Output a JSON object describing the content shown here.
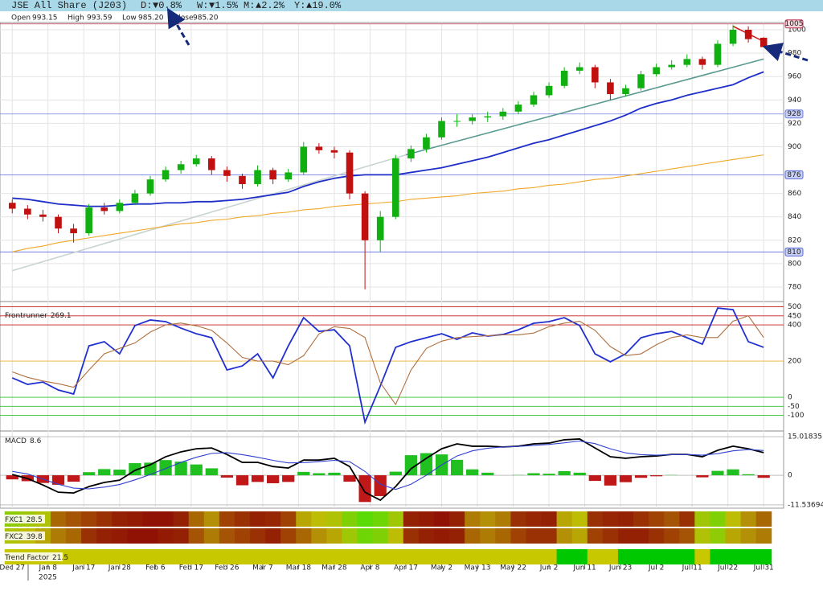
{
  "header": {
    "title": "JSE All Share (J203)",
    "changes": [
      {
        "name": "D:",
        "text": "▼0.8%",
        "color": "#d02020"
      },
      {
        "name": "W:",
        "text": "▼1.5%",
        "color": "#d02020"
      },
      {
        "name": "M:",
        "text": "▲2.2%",
        "color": "#109010"
      },
      {
        "name": "Y:",
        "text": "▲19.0%",
        "color": "#109010"
      }
    ],
    "ohlc": [
      {
        "name": "Open",
        "value": 993.15
      },
      {
        "name": "High",
        "value": 993.59
      },
      {
        "name": "Low",
        "value": {
          "value": 985.2,
          "label": "985.20"
        }
      },
      {
        "name": "Close",
        "value": {
          "value": 985.2,
          "label": "985.20"
        }
      }
    ]
  },
  "x": {
    "values": [
      0,
      3,
      6,
      9,
      12,
      15,
      18,
      21,
      24,
      27,
      30,
      33,
      36,
      39,
      42,
      45,
      48,
      51,
      54,
      57,
      60,
      63,
      66,
      69,
      72,
      75,
      78,
      81,
      84,
      87,
      90,
      93,
      96,
      99,
      102,
      105,
      108,
      111,
      114,
      117,
      120,
      123,
      126,
      129,
      132,
      135,
      138,
      141,
      144,
      147
    ],
    "xlim": [
      -2.4,
      150.9
    ],
    "xticks": [
      {
        "value": 0,
        "label": "Dec 27"
      },
      {
        "value": 7,
        "label": "Jan 8"
      },
      {
        "value": 14,
        "label": "Jan 17"
      },
      {
        "value": 21,
        "label": "Jan 28"
      },
      {
        "value": 28,
        "label": "Feb 6"
      },
      {
        "value": 35,
        "label": "Feb 17"
      },
      {
        "value": 42,
        "label": "Feb 26"
      },
      {
        "value": 49,
        "label": "Mar 7"
      },
      {
        "value": 56,
        "label": "Mar 18"
      },
      {
        "value": 63,
        "label": "Mar 28"
      },
      {
        "value": 70,
        "label": "Apr 8"
      },
      {
        "value": 77,
        "label": "Apr 17"
      },
      {
        "value": 84,
        "label": "May 2"
      },
      {
        "value": 91,
        "label": "May 13"
      },
      {
        "value": 98,
        "label": "May 22"
      },
      {
        "value": 105,
        "label": "Jun 2"
      },
      {
        "value": 112,
        "label": "Jun 11"
      },
      {
        "value": 119,
        "label": "Jun 23"
      },
      {
        "value": 126,
        "label": "Jul 2"
      },
      {
        "value": 133,
        "label": "Jul 11"
      },
      {
        "value": 140,
        "label": "Jul 22"
      },
      {
        "value": 147,
        "label": "Jul 31"
      }
    ],
    "year": "2025"
  },
  "chart_data": [
    {
      "type": "candlestick",
      "up_color": "#10b010",
      "down_color": "#c01010",
      "grid": true,
      "ylim": [
        767.6,
        1006.2
      ],
      "yticks": [
        780,
        800,
        820,
        840,
        860,
        900,
        920,
        940,
        960,
        980,
        1000
      ],
      "ohlc": [
        [
          852,
          855,
          843,
          847
        ],
        [
          847,
          850,
          838,
          842
        ],
        [
          842,
          846,
          836,
          840
        ],
        [
          840,
          842,
          826,
          830
        ],
        [
          830,
          834,
          818,
          826
        ],
        [
          826,
          851,
          824,
          848
        ],
        [
          848,
          852,
          842,
          845
        ],
        [
          845,
          855,
          843,
          852
        ],
        [
          852,
          863,
          850,
          860
        ],
        [
          860,
          875,
          858,
          872
        ],
        [
          872,
          883,
          870,
          880
        ],
        [
          880,
          888,
          877,
          885
        ],
        [
          885,
          893,
          883,
          890
        ],
        [
          890,
          892,
          876,
          880
        ],
        [
          880,
          883,
          870,
          875
        ],
        [
          875,
          877,
          864,
          868
        ],
        [
          868,
          884,
          866,
          880
        ],
        [
          880,
          882,
          868,
          872
        ],
        [
          872,
          881,
          870,
          878
        ],
        [
          878,
          904,
          876,
          900
        ],
        [
          900,
          903,
          894,
          897
        ],
        [
          897,
          900,
          890,
          895
        ],
        [
          895,
          897,
          855,
          860
        ],
        [
          860,
          862,
          778,
          820
        ],
        [
          820,
          845,
          810,
          840
        ],
        [
          840,
          893,
          838,
          890
        ],
        [
          890,
          901,
          887,
          898
        ],
        [
          898,
          911,
          895,
          908
        ],
        [
          908,
          925,
          906,
          922
        ],
        [
          922,
          928,
          917,
          922
        ],
        [
          922,
          928,
          919,
          925
        ],
        [
          925,
          930,
          921,
          926
        ],
        [
          926,
          933,
          923,
          930
        ],
        [
          930,
          939,
          928,
          936
        ],
        [
          936,
          947,
          934,
          944
        ],
        [
          944,
          955,
          942,
          952
        ],
        [
          952,
          968,
          950,
          965
        ],
        [
          965,
          972,
          962,
          968
        ],
        [
          968,
          970,
          950,
          955
        ],
        [
          955,
          958,
          940,
          945
        ],
        [
          945,
          953,
          943,
          950
        ],
        [
          950,
          965,
          948,
          962
        ],
        [
          962,
          971,
          960,
          968
        ],
        [
          968,
          974,
          966,
          970
        ],
        [
          970,
          979,
          968,
          975
        ],
        [
          975,
          977,
          966,
          970
        ],
        [
          970,
          991,
          968,
          988
        ],
        [
          988,
          1004,
          986,
          1000
        ],
        [
          1000,
          1003,
          989,
          992
        ],
        [
          993.15,
          993.59,
          985.2,
          985.2
        ]
      ],
      "series": [
        {
          "color": "#1e2ec8",
          "values": [
            856,
            855,
            853,
            851,
            850,
            849,
            849,
            850,
            851,
            851,
            852,
            852,
            853,
            853,
            854,
            855,
            857,
            859,
            861,
            866,
            870,
            873,
            875,
            876,
            876,
            876,
            878,
            880,
            882,
            885,
            888,
            891,
            895,
            899,
            903,
            906,
            910,
            914,
            918,
            922,
            927,
            933,
            937,
            940,
            944,
            947,
            950,
            953,
            959,
            964
          ]
        },
        {
          "color": "#f0a828",
          "values": [
            810,
            813,
            815,
            818,
            820,
            822,
            824,
            826,
            828,
            830,
            832,
            834,
            835,
            837,
            838,
            840,
            841,
            843,
            844,
            846,
            847,
            849,
            850,
            851,
            852,
            853,
            855,
            856,
            857,
            858,
            860,
            861,
            862,
            864,
            865,
            867,
            868,
            870,
            872,
            873,
            875,
            877,
            879,
            881,
            883,
            885,
            887,
            889,
            891,
            893
          ]
        }
      ],
      "levels": [
        {
          "value": 1005,
          "color": "#c03050"
        },
        {
          "value": 928,
          "color": "#7080e0"
        },
        {
          "value": 876,
          "color": "#5a6ae0"
        },
        {
          "value": 810,
          "color": "#5a6ae0"
        }
      ],
      "trendlines": [
        {
          "color": "#c8d4d0",
          "x": [
            0,
            77
          ],
          "y": [
            794,
            893
          ]
        },
        {
          "color": "#5a9a90",
          "x": [
            77,
            147
          ],
          "y": [
            893,
            975
          ]
        },
        {
          "color": "#d02020",
          "x": [
            141,
            147
          ],
          "y": [
            1003,
            990
          ]
        }
      ]
    },
    {
      "type": "line",
      "title": "Frontrunner",
      "value": 269.1,
      "ylim": [
        -182,
        529
      ],
      "yticks": [
        500,
        450,
        400,
        200,
        0,
        -50,
        -100
      ],
      "tick_colors": [
        "#c02020",
        "#c02020",
        "#c02020",
        "#f0b030",
        "#30c030",
        "#30c030",
        "#30c030"
      ],
      "series": [
        {
          "color": "#2030d0",
          "values": [
            107,
            71,
            84,
            40,
            18,
            284,
            307,
            240,
            396,
            427,
            418,
            382,
            351,
            329,
            151,
            173,
            240,
            107,
            284,
            440,
            364,
            373,
            284,
            -138,
            62,
            276,
            307,
            329,
            351,
            320,
            356,
            338,
            347,
            373,
            409,
            418,
            440,
            396,
            240,
            196,
            240,
            329,
            351,
            364,
            329,
            293,
            493,
            484,
            307,
            276
          ]
        },
        {
          "color": "#b07040",
          "values": [
            140,
            110,
            90,
            75,
            55,
            150,
            240,
            270,
            300,
            360,
            400,
            410,
            395,
            370,
            300,
            220,
            200,
            200,
            180,
            230,
            350,
            390,
            380,
            330,
            80,
            -40,
            150,
            270,
            310,
            330,
            335,
            340,
            345,
            345,
            355,
            390,
            410,
            420,
            370,
            280,
            230,
            240,
            290,
            330,
            345,
            330,
            330,
            420,
            450,
            330
          ]
        }
      ]
    },
    {
      "type": "macd",
      "title": "MACD",
      "value": 8.6,
      "ylim": [
        -12.8,
        16.9
      ],
      "yticks": [
        -11.53694,
        0,
        15.01835
      ],
      "series": [
        {
          "color": "#000000",
          "values": [
            0.3,
            -1.3,
            -3.8,
            -6.6,
            -6.9,
            -4.4,
            -2.8,
            -1.9,
            1.9,
            4.1,
            7.2,
            9.1,
            10.3,
            10.6,
            8.1,
            5.0,
            5.0,
            3.4,
            2.8,
            5.9,
            5.9,
            6.6,
            3.4,
            -6.6,
            -9.7,
            -4.4,
            2.5,
            6.6,
            10.3,
            12.2,
            11.3,
            11.3,
            11.0,
            11.3,
            12.2,
            12.5,
            13.8,
            14.1,
            10.6,
            7.2,
            6.6,
            7.2,
            7.5,
            8.1,
            8.1,
            7.2,
            9.7,
            11.3,
            10.3,
            8.8
          ]
        },
        {
          "color": "#3040d0",
          "values": [
            1.5,
            0.5,
            -1.5,
            -3.5,
            -5.0,
            -5.3,
            -4.6,
            -3.6,
            -1.8,
            0.3,
            2.6,
            5.0,
            7.0,
            8.5,
            8.8,
            8.0,
            7.0,
            5.8,
            4.8,
            4.9,
            5.3,
            5.8,
            5.3,
            1.5,
            -3.5,
            -5.5,
            -3.5,
            0,
            4.0,
            7.5,
            9.5,
            10.5,
            11.0,
            11.2,
            11.6,
            12.0,
            12.6,
            13.3,
            12.3,
            10.3,
            8.7,
            8.0,
            7.8,
            8.0,
            8.1,
            7.8,
            8.4,
            9.5,
            10.0,
            9.6
          ]
        }
      ],
      "histogram": {
        "up_color": "#20c020",
        "down_color": "#c01818",
        "values": [
          -1.6,
          -2.3,
          -3.0,
          -3.7,
          -2.5,
          1.2,
          2.4,
          2.2,
          4.7,
          4.9,
          5.9,
          5.3,
          4.2,
          2.7,
          -0.9,
          -3.9,
          -2.6,
          -3.1,
          -2.6,
          1.3,
          0.8,
          1.0,
          -2.5,
          -10.4,
          -8.1,
          1.4,
          7.8,
          8.6,
          8.1,
          6.0,
          2.3,
          1.0,
          0,
          0.1,
          0.8,
          0.6,
          1.6,
          1.0,
          -2.2,
          -4.0,
          -2.7,
          -1.0,
          -0.4,
          0.1,
          0,
          -0.8,
          1.7,
          2.3,
          0.4,
          -1.0
        ]
      }
    },
    {
      "type": "heatmap",
      "title": "FXC1",
      "value": 28.5,
      "values": [
        65,
        60,
        55,
        30,
        25,
        20,
        15,
        10,
        8,
        5,
        5,
        10,
        30,
        40,
        20,
        15,
        10,
        12,
        20,
        45,
        50,
        55,
        70,
        80,
        75,
        60,
        10,
        8,
        5,
        10,
        35,
        40,
        35,
        15,
        12,
        10,
        45,
        50,
        15,
        12,
        10,
        15,
        20,
        25,
        15,
        60,
        70,
        50,
        40,
        30
      ]
    },
    {
      "type": "heatmap",
      "title": "FXC2",
      "value": 39.8,
      "values": [
        55,
        50,
        45,
        35,
        30,
        15,
        10,
        8,
        5,
        5,
        8,
        10,
        25,
        35,
        25,
        20,
        15,
        10,
        20,
        30,
        40,
        45,
        60,
        75,
        70,
        50,
        15,
        10,
        8,
        10,
        30,
        35,
        30,
        20,
        15,
        15,
        40,
        45,
        20,
        15,
        10,
        10,
        15,
        20,
        25,
        55,
        65,
        45,
        40,
        35
      ]
    },
    {
      "type": "bands",
      "title": "Trend Factor",
      "value": 21.5,
      "colors": [
        "#c8c800",
        "#c8c800",
        "#c8c800",
        "#c8c800",
        "#c8c800",
        "#c8c800",
        "#c8c800",
        "#c8c800",
        "#c8c800",
        "#c8c800",
        "#c8c800",
        "#c8c800",
        "#c8c800",
        "#c8c800",
        "#c8c800",
        "#c8c800",
        "#c8c800",
        "#c8c800",
        "#c8c800",
        "#c8c800",
        "#c8c800",
        "#c8c800",
        "#c8c800",
        "#c8c800",
        "#c8c800",
        "#c8c800",
        "#c8c800",
        "#c8c800",
        "#c8c800",
        "#c8c800",
        "#c8c800",
        "#c8c800",
        "#c8c800",
        "#c8c800",
        "#c8c800",
        "#c8c800",
        "#00c800",
        "#00c800",
        "#c8c800",
        "#c8c800",
        "#00c800",
        "#00c800",
        "#00c800",
        "#00c800",
        "#00c800",
        "#c8c800",
        "#00c800",
        "#00c800",
        "#00c800",
        "#00c800"
      ]
    }
  ]
}
